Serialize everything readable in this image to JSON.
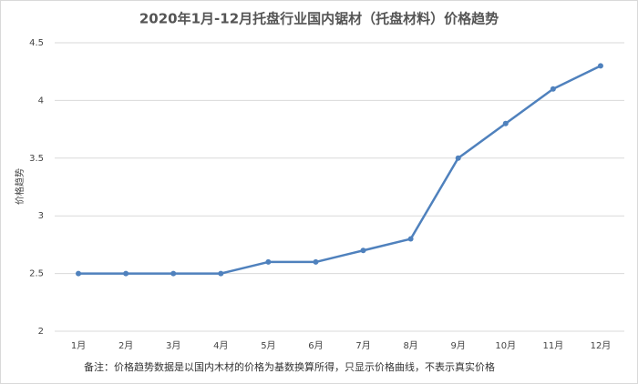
{
  "chart_data": {
    "type": "line",
    "title": "2020年1月-12月托盘行业国内锯材（托盘材料）价格趋势",
    "y_label": "价格趋势",
    "note": "备注：价格趋势数据是以国内木材的价格为基数换算所得，只显示价格曲线，不表示真实价格",
    "categories": [
      "1月",
      "2月",
      "3月",
      "4月",
      "5月",
      "6月",
      "7月",
      "8月",
      "9月",
      "10月",
      "11月",
      "12月"
    ],
    "values": [
      2.5,
      2.5,
      2.5,
      2.5,
      2.6,
      2.6,
      2.7,
      2.8,
      3.5,
      3.8,
      4.1,
      4.3
    ],
    "color": "#4f81bd",
    "ylim": [
      2,
      4.5
    ],
    "yticks": [
      2,
      2.5,
      3,
      3.5,
      4,
      4.5
    ],
    "grid": true
  }
}
